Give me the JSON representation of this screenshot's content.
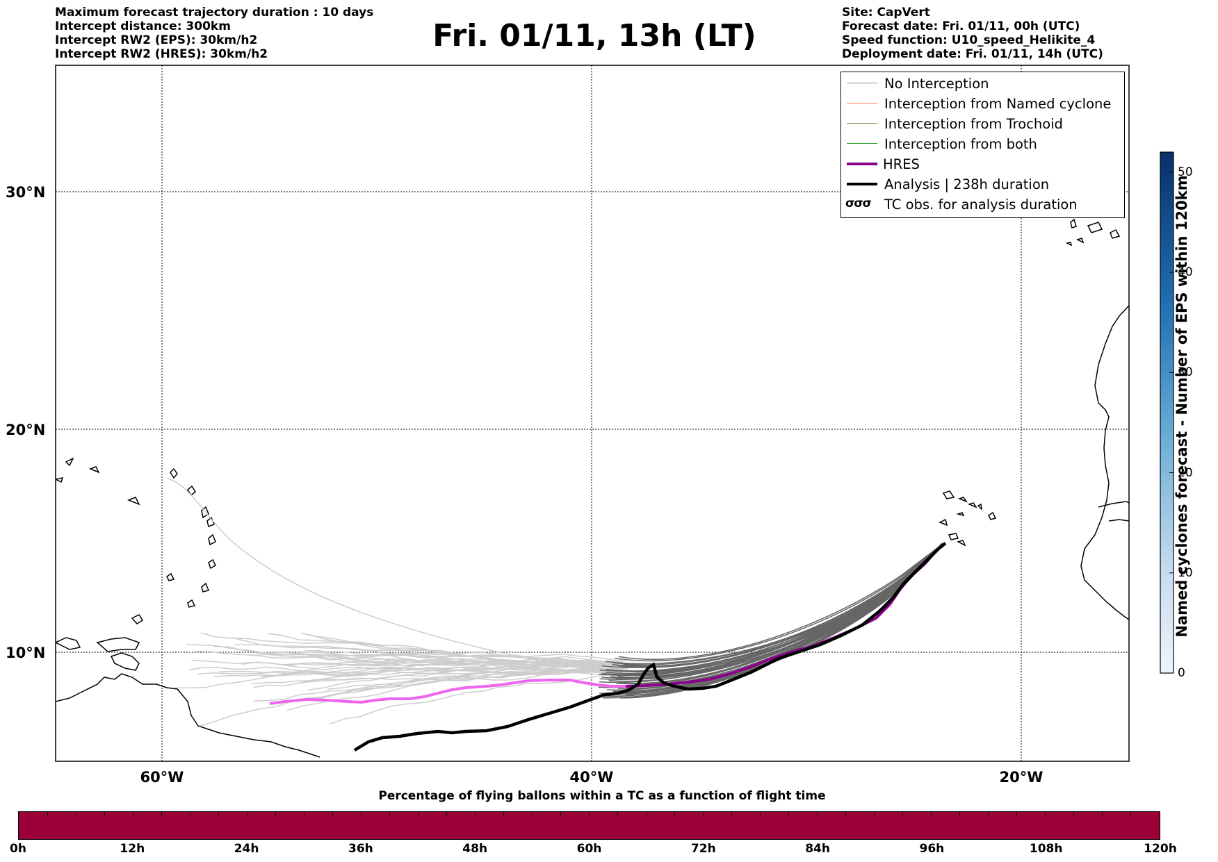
{
  "header": {
    "left_lines": [
      "Maximum forecast trajectory duration : 10 days",
      "Intercept distance: 300km",
      "Intercept RW2 (EPS):  30km/h2",
      "Intercept RW2 (HRES): 30km/h2"
    ],
    "title": "Fri. 01/11, 13h (LT)",
    "right_lines": [
      "Site: CapVert",
      "Forecast date: Fri. 01/11, 00h (UTC)",
      "Speed function: U10_speed_Helikite_4",
      "Deployment date: Fri. 01/11, 14h (UTC)"
    ]
  },
  "map": {
    "lat_labels": [
      "30°N",
      "20°N",
      "10°N"
    ],
    "lon_labels": [
      "60°W",
      "40°W",
      "20°W"
    ],
    "colors": {
      "no_interception": "#8c8c8c",
      "named_cyclone": "#ff7f50",
      "trochoid": "#8b8b3a",
      "both": "#2ca02c",
      "hres": "#8b008b",
      "hres_early": "#ee66ee",
      "analysis": "#000000"
    }
  },
  "legend": {
    "items": [
      {
        "label": "No Interception",
        "color": "#8c8c8c",
        "width": 1.5
      },
      {
        "label": "Interception from Named cyclone",
        "color": "#ff7f50",
        "width": 1.5
      },
      {
        "label": "Interception from Trochoid",
        "color": "#8b8b3a",
        "width": 1.5
      },
      {
        "label": "Interception from both",
        "color": "#2ca02c",
        "width": 1.5
      },
      {
        "label": "HRES",
        "color": "#8b008b",
        "width": 4
      },
      {
        "label": "Analysis | 238h duration",
        "color": "#000000",
        "width": 4
      }
    ],
    "tc_symbol": "σσσ",
    "tc_label": "TC obs. for analysis duration"
  },
  "right_colorbar": {
    "title": "Named cyclones forecast - Number of EPS within 120km",
    "ticks": [
      "0",
      "10",
      "20",
      "30",
      "40",
      "50"
    ],
    "max": 52
  },
  "bottom_colorbar": {
    "title": "Percentage of flying ballons within a TC as a function of flight time",
    "ticks": [
      "0h",
      "12h",
      "24h",
      "36h",
      "48h",
      "60h",
      "72h",
      "84h",
      "96h",
      "108h",
      "120h"
    ],
    "color": "#9b0039"
  }
}
